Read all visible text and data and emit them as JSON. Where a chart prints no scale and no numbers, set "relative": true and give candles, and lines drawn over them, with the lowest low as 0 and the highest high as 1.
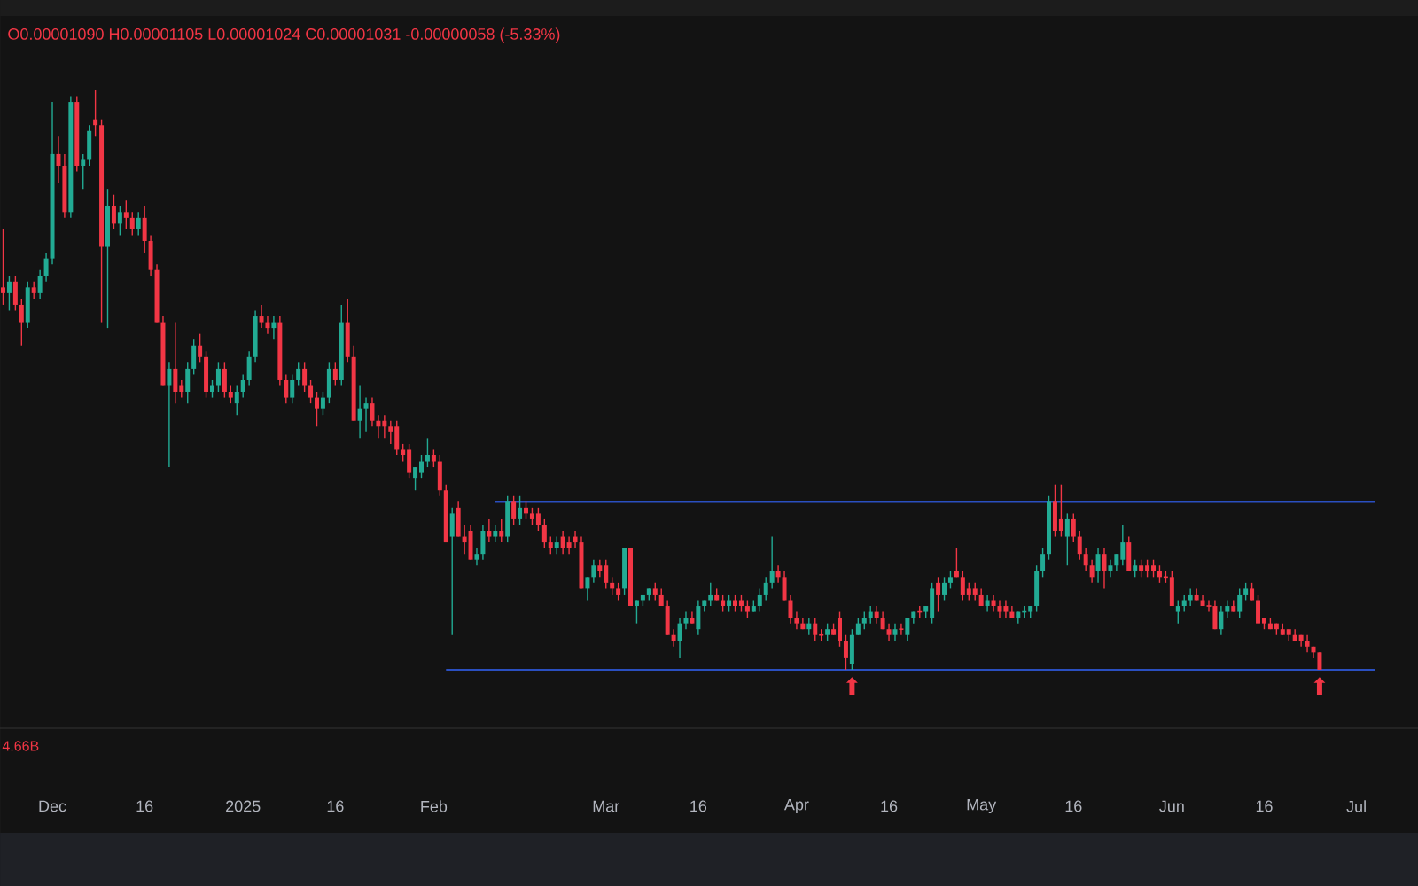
{
  "chart_data": {
    "type": "candlestick",
    "relative": true,
    "title": "O0.00001090 H0.00001105 L0.00001024 C0.00001031 -0.00000058 (-5.33%)",
    "colors": [
      "#f23645",
      "#22ab94",
      "#f23645",
      "#f23645",
      "#22ab94",
      "#f23645",
      "#22ab94",
      "#22ab94",
      "#22ab94",
      "#f23645",
      "#f23645",
      "#22ab94",
      "#f23645",
      "#22ab94",
      "#22ab94",
      "#f23645",
      "#f23645",
      "#22ab94",
      "#f23645",
      "#22ab94",
      "#f23645",
      "#f23645",
      "#22ab94",
      "#f23645",
      "#f23645",
      "#f23645",
      "#f23645",
      "#22ab94",
      "#f23645",
      "#f23645",
      "#22ab94",
      "#22ab94",
      "#f23645",
      "#f23645",
      "#22ab94",
      "#22ab94",
      "#f23645",
      "#f23645",
      "#22ab94",
      "#22ab94",
      "#22ab94",
      "#22ab94",
      "#f23645",
      "#f23645",
      "#22ab94",
      "#f23645",
      "#f23645",
      "#22ab94",
      "#22ab94",
      "#f23645",
      "#f23645",
      "#f23645",
      "#22ab94",
      "#22ab94",
      "#f23645",
      "#22ab94",
      "#f23645",
      "#f23645",
      "#22ab94",
      "#22ab94",
      "#f23645",
      "#f23645",
      "#f23645",
      "#f23645",
      "#f23645",
      "#f23645",
      "#f23645",
      "#22ab94",
      "#22ab94",
      "#22ab94",
      "#f23645",
      "#f23645",
      "#f23645",
      "#22ab94",
      "#f23645",
      "#f23645",
      "#f23645",
      "#22ab94",
      "#22ab94",
      "#f23645",
      "#22ab94",
      "#f23645",
      "#22ab94",
      "#f23645",
      "#22ab94",
      "#f23645",
      "#f23645",
      "#f23645",
      "#f23645",
      "#f23645",
      "#22ab94",
      "#f23645",
      "#f23645",
      "#f23645",
      "#f23645",
      "#22ab94",
      "#22ab94",
      "#f23645",
      "#f23645",
      "#f23645",
      "#f23645",
      "#22ab94",
      "#f23645",
      "#22ab94",
      "#22ab94",
      "#22ab94",
      "#f23645",
      "#f23645",
      "#f23645",
      "#f23645",
      "#22ab94",
      "#22ab94",
      "#f23645",
      "#22ab94",
      "#22ab94",
      "#22ab94",
      "#f23645",
      "#f23645",
      "#22ab94",
      "#f23645",
      "#f23645",
      "#f23645",
      "#22ab94",
      "#22ab94",
      "#22ab94",
      "#22ab94",
      "#f23645",
      "#f23645",
      "#f23645",
      "#f23645",
      "#f23645",
      "#22ab94",
      "#f23645",
      "#f23645",
      "#22ab94",
      "#f23645",
      "#f23645",
      "#f23645",
      "#22ab94",
      "#22ab94",
      "#22ab94",
      "#22ab94",
      "#f23645",
      "#f23645",
      "#f23645",
      "#22ab94",
      "#f23645",
      "#22ab94",
      "#22ab94",
      "#f23645",
      "#22ab94",
      "#22ab94",
      "#f23645",
      "#22ab94",
      "#22ab94",
      "#f23645",
      "#f23645",
      "#f23645",
      "#f23645",
      "#f23645",
      "#22ab94",
      "#f23645",
      "#f23645",
      "#f23645",
      "#f23645",
      "#22ab94",
      "#22ab94",
      "#22ab94",
      "#22ab94",
      "#22ab94",
      "#22ab94",
      "#f23645",
      "#f23645",
      "#22ab94",
      "#f23645",
      "#f23645",
      "#f23645",
      "#f23645",
      "#22ab94",
      "#f23645",
      "#22ab94",
      "#22ab94",
      "#22ab94",
      "#f23645",
      "#22ab94",
      "#f23645",
      "#f23645",
      "#f23645",
      "#f23645",
      "#f23645",
      "#f23645",
      "#22ab94",
      "#22ab94",
      "#22ab94",
      "#f23645",
      "#f23645",
      "#f23645",
      "#f23645",
      "#22ab94",
      "#22ab94",
      "#f23645",
      "#22ab94",
      "#22ab94",
      "#f23645",
      "#f23645",
      "#f23645",
      "#f23645",
      "#f23645",
      "#f23645",
      "#f23645",
      "#f23645",
      "#f23645",
      "#f23645",
      "#f23645",
      "#f23645"
    ],
    "xlim": [
      "2024-11-22T12:00",
      "2025-07-11"
    ],
    "xticks": [
      {
        "value": "2024-12-01",
        "label": "Dec"
      },
      {
        "value": "2024-12-16",
        "label": "16"
      },
      {
        "value": "2025-01-01",
        "label": "2025"
      },
      {
        "value": "2025-01-16",
        "label": "16"
      },
      {
        "value": "2025-02-01",
        "label": "Feb"
      },
      {
        "value": "2025-03-01",
        "label": "Mar"
      },
      {
        "value": "2025-03-16",
        "label": "16"
      },
      {
        "value": "2025-04-01",
        "label": "Apr"
      },
      {
        "value": "2025-04-16",
        "label": "16"
      },
      {
        "value": "2025-05-01",
        "label": "May"
      },
      {
        "value": "2025-05-16",
        "label": "16"
      },
      {
        "value": "2025-06-01",
        "label": "Jun"
      },
      {
        "value": "2025-06-16",
        "label": "16"
      },
      {
        "value": "2025-07-01",
        "label": "Jul"
      }
    ],
    "annotations": [
      "4.66B",
      {
        "text": "⬆",
        "x": "2025-04-10",
        "y": 0
      },
      {
        "text": "⬆",
        "x": "2025-06-25",
        "y": 0
      }
    ],
    "x": [
      "2024-11-23",
      "2024-11-24",
      "2024-11-25",
      "2024-11-26",
      "2024-11-27",
      "2024-11-28",
      "2024-11-29",
      "2024-11-30",
      "2024-12-01",
      "2024-12-02",
      "2024-12-03",
      "2024-12-04",
      "2024-12-05",
      "2024-12-06",
      "2024-12-07",
      "2024-12-08",
      "2024-12-09",
      "2024-12-10",
      "2024-12-11",
      "2024-12-12",
      "2024-12-13",
      "2024-12-14",
      "2024-12-15",
      "2024-12-16",
      "2024-12-17",
      "2024-12-18",
      "2024-12-19",
      "2024-12-20",
      "2024-12-21",
      "2024-12-22",
      "2024-12-23",
      "2024-12-24",
      "2024-12-25",
      "2024-12-26",
      "2024-12-27",
      "2024-12-28",
      "2024-12-29",
      "2024-12-30",
      "2024-12-31",
      "2025-01-01",
      "2025-01-02",
      "2025-01-03",
      "2025-01-04",
      "2025-01-05",
      "2025-01-06",
      "2025-01-07",
      "2025-01-08",
      "2025-01-09",
      "2025-01-10",
      "2025-01-11",
      "2025-01-12",
      "2025-01-13",
      "2025-01-14",
      "2025-01-15",
      "2025-01-16",
      "2025-01-17",
      "2025-01-18",
      "2025-01-19",
      "2025-01-20",
      "2025-01-21",
      "2025-01-22",
      "2025-01-23",
      "2025-01-24",
      "2025-01-25",
      "2025-01-26",
      "2025-01-27",
      "2025-01-28",
      "2025-01-29",
      "2025-01-30",
      "2025-01-31",
      "2025-02-01",
      "2025-02-02",
      "2025-02-03",
      "2025-02-04",
      "2025-02-05",
      "2025-02-06",
      "2025-02-07",
      "2025-02-08",
      "2025-02-09",
      "2025-02-10",
      "2025-02-11",
      "2025-02-12",
      "2025-02-13",
      "2025-02-14",
      "2025-02-15",
      "2025-02-16",
      "2025-02-17",
      "2025-02-18",
      "2025-02-19",
      "2025-02-20",
      "2025-02-21",
      "2025-02-22",
      "2025-02-23",
      "2025-02-24",
      "2025-02-25",
      "2025-02-26",
      "2025-02-27",
      "2025-02-28",
      "2025-03-01",
      "2025-03-02",
      "2025-03-03",
      "2025-03-04",
      "2025-03-05",
      "2025-03-06",
      "2025-03-07",
      "2025-03-08",
      "2025-03-09",
      "2025-03-10",
      "2025-03-11",
      "2025-03-12",
      "2025-03-13",
      "2025-03-14",
      "2025-03-15",
      "2025-03-16",
      "2025-03-17",
      "2025-03-18",
      "2025-03-19",
      "2025-03-20",
      "2025-03-21",
      "2025-03-22",
      "2025-03-23",
      "2025-03-24",
      "2025-03-25",
      "2025-03-26",
      "2025-03-27",
      "2025-03-28",
      "2025-03-29",
      "2025-03-30",
      "2025-03-31",
      "2025-04-01",
      "2025-04-02",
      "2025-04-03",
      "2025-04-04",
      "2025-04-05",
      "2025-04-06",
      "2025-04-07",
      "2025-04-08",
      "2025-04-09",
      "2025-04-10",
      "2025-04-11",
      "2025-04-12",
      "2025-04-13",
      "2025-04-14",
      "2025-04-15",
      "2025-04-16",
      "2025-04-17",
      "2025-04-18",
      "2025-04-19",
      "2025-04-20",
      "2025-04-21",
      "2025-04-22",
      "2025-04-23",
      "2025-04-24",
      "2025-04-25",
      "2025-04-26",
      "2025-04-27",
      "2025-04-28",
      "2025-04-29",
      "2025-04-30",
      "2025-05-01",
      "2025-05-02",
      "2025-05-03",
      "2025-05-04",
      "2025-05-05",
      "2025-05-06",
      "2025-05-07",
      "2025-05-08",
      "2025-05-09",
      "2025-05-10",
      "2025-05-11",
      "2025-05-12",
      "2025-05-13",
      "2025-05-14",
      "2025-05-15",
      "2025-05-16",
      "2025-05-17",
      "2025-05-18",
      "2025-05-19",
      "2025-05-20",
      "2025-05-21",
      "2025-05-22",
      "2025-05-23",
      "2025-05-24",
      "2025-05-25",
      "2025-05-26",
      "2025-05-27",
      "2025-05-28",
      "2025-05-29",
      "2025-05-30",
      "2025-05-31",
      "2025-06-01",
      "2025-06-02",
      "2025-06-03",
      "2025-06-04",
      "2025-06-05",
      "2025-06-06",
      "2025-06-07",
      "2025-06-08",
      "2025-06-09",
      "2025-06-10",
      "2025-06-11",
      "2025-06-12",
      "2025-06-13",
      "2025-06-14",
      "2025-06-15",
      "2025-06-16",
      "2025-06-17",
      "2025-06-18",
      "2025-06-19",
      "2025-06-20",
      "2025-06-21",
      "2025-06-22",
      "2025-06-23",
      "2025-06-24",
      "2025-06-25"
    ],
    "ohlc": [
      [
        0.66,
        0.76,
        0.63,
        0.65
      ],
      [
        0.65,
        0.68,
        0.62,
        0.67
      ],
      [
        0.67,
        0.68,
        0.62,
        0.63
      ],
      [
        0.63,
        0.64,
        0.56,
        0.6
      ],
      [
        0.6,
        0.67,
        0.59,
        0.66
      ],
      [
        0.66,
        0.67,
        0.64,
        0.65
      ],
      [
        0.65,
        0.69,
        0.64,
        0.68
      ],
      [
        0.68,
        0.72,
        0.67,
        0.71
      ],
      [
        0.71,
        0.98,
        0.7,
        0.89
      ],
      [
        0.89,
        0.92,
        0.84,
        0.87
      ],
      [
        0.87,
        0.89,
        0.78,
        0.79
      ],
      [
        0.79,
        0.99,
        0.78,
        0.98
      ],
      [
        0.98,
        0.99,
        0.86,
        0.87
      ],
      [
        0.87,
        0.89,
        0.83,
        0.88
      ],
      [
        0.88,
        0.94,
        0.87,
        0.93
      ],
      [
        0.95,
        1.0,
        0.92,
        0.94
      ],
      [
        0.94,
        0.95,
        0.6,
        0.73
      ],
      [
        0.73,
        0.83,
        0.59,
        0.8
      ],
      [
        0.8,
        0.82,
        0.76,
        0.77
      ],
      [
        0.77,
        0.8,
        0.75,
        0.79
      ],
      [
        0.79,
        0.81,
        0.76,
        0.78
      ],
      [
        0.78,
        0.79,
        0.75,
        0.76
      ],
      [
        0.76,
        0.79,
        0.75,
        0.78
      ],
      [
        0.78,
        0.8,
        0.72,
        0.74
      ],
      [
        0.74,
        0.75,
        0.68,
        0.69
      ],
      [
        0.69,
        0.7,
        0.6,
        0.6
      ],
      [
        0.6,
        0.61,
        0.49,
        0.49
      ],
      [
        0.49,
        0.53,
        0.35,
        0.52
      ],
      [
        0.52,
        0.6,
        0.46,
        0.48
      ],
      [
        0.49,
        0.5,
        0.47,
        0.48
      ],
      [
        0.48,
        0.53,
        0.46,
        0.52
      ],
      [
        0.52,
        0.57,
        0.51,
        0.56
      ],
      [
        0.56,
        0.58,
        0.53,
        0.54
      ],
      [
        0.54,
        0.55,
        0.47,
        0.48
      ],
      [
        0.48,
        0.5,
        0.47,
        0.49
      ],
      [
        0.49,
        0.53,
        0.48,
        0.52
      ],
      [
        0.52,
        0.53,
        0.47,
        0.48
      ],
      [
        0.48,
        0.49,
        0.46,
        0.47
      ],
      [
        0.46,
        0.49,
        0.44,
        0.48
      ],
      [
        0.48,
        0.51,
        0.47,
        0.5
      ],
      [
        0.5,
        0.55,
        0.49,
        0.54
      ],
      [
        0.54,
        0.62,
        0.53,
        0.61
      ],
      [
        0.61,
        0.63,
        0.59,
        0.6
      ],
      [
        0.6,
        0.61,
        0.58,
        0.59
      ],
      [
        0.59,
        0.61,
        0.57,
        0.6
      ],
      [
        0.6,
        0.61,
        0.49,
        0.5
      ],
      [
        0.5,
        0.51,
        0.46,
        0.47
      ],
      [
        0.47,
        0.51,
        0.46,
        0.5
      ],
      [
        0.5,
        0.53,
        0.49,
        0.52
      ],
      [
        0.52,
        0.53,
        0.48,
        0.49
      ],
      [
        0.49,
        0.5,
        0.46,
        0.47
      ],
      [
        0.47,
        0.48,
        0.42,
        0.45
      ],
      [
        0.45,
        0.48,
        0.44,
        0.47
      ],
      [
        0.47,
        0.53,
        0.46,
        0.52
      ],
      [
        0.52,
        0.53,
        0.49,
        0.5
      ],
      [
        0.5,
        0.63,
        0.49,
        0.6
      ],
      [
        0.6,
        0.64,
        0.53,
        0.54
      ],
      [
        0.54,
        0.56,
        0.43,
        0.43
      ],
      [
        0.43,
        0.49,
        0.4,
        0.45
      ],
      [
        0.45,
        0.47,
        0.41,
        0.46
      ],
      [
        0.46,
        0.47,
        0.42,
        0.43
      ],
      [
        0.43,
        0.44,
        0.4,
        0.42
      ],
      [
        0.43,
        0.44,
        0.4,
        0.42
      ],
      [
        0.42,
        0.43,
        0.39,
        0.41
      ],
      [
        0.42,
        0.43,
        0.37,
        0.38
      ],
      [
        0.38,
        0.39,
        0.36,
        0.37
      ],
      [
        0.38,
        0.39,
        0.33,
        0.34
      ],
      [
        0.33,
        0.35,
        0.31,
        0.35
      ],
      [
        0.34,
        0.37,
        0.33,
        0.36
      ],
      [
        0.36,
        0.4,
        0.35,
        0.37
      ],
      [
        0.37,
        0.38,
        0.35,
        0.36
      ],
      [
        0.36,
        0.37,
        0.3,
        0.31
      ],
      [
        0.31,
        0.32,
        0.22,
        0.22
      ],
      [
        0.23,
        0.28,
        0.06,
        0.27
      ],
      [
        0.28,
        0.29,
        0.23,
        0.23
      ],
      [
        0.23,
        0.25,
        0.2,
        0.22
      ],
      [
        0.24,
        0.25,
        0.19,
        0.19
      ],
      [
        0.19,
        0.21,
        0.18,
        0.2
      ],
      [
        0.2,
        0.25,
        0.19,
        0.24
      ],
      [
        0.24,
        0.26,
        0.22,
        0.23
      ],
      [
        0.23,
        0.25,
        0.22,
        0.24
      ],
      [
        0.24,
        0.26,
        0.22,
        0.23
      ],
      [
        0.23,
        0.3,
        0.22,
        0.29
      ],
      [
        0.29,
        0.3,
        0.25,
        0.26
      ],
      [
        0.26,
        0.3,
        0.25,
        0.28
      ],
      [
        0.28,
        0.29,
        0.26,
        0.27
      ],
      [
        0.27,
        0.28,
        0.25,
        0.26
      ],
      [
        0.27,
        0.28,
        0.24,
        0.25
      ],
      [
        0.25,
        0.26,
        0.21,
        0.22
      ],
      [
        0.22,
        0.23,
        0.2,
        0.21
      ],
      [
        0.21,
        0.23,
        0.2,
        0.22
      ],
      [
        0.23,
        0.24,
        0.2,
        0.21
      ],
      [
        0.22,
        0.23,
        0.2,
        0.21
      ],
      [
        0.23,
        0.24,
        0.21,
        0.22
      ],
      [
        0.22,
        0.23,
        0.14,
        0.14
      ],
      [
        0.14,
        0.16,
        0.12,
        0.16
      ],
      [
        0.16,
        0.19,
        0.15,
        0.18
      ],
      [
        0.18,
        0.19,
        0.16,
        0.17
      ],
      [
        0.18,
        0.19,
        0.14,
        0.15
      ],
      [
        0.15,
        0.16,
        0.13,
        0.14
      ],
      [
        0.14,
        0.15,
        0.12,
        0.13
      ],
      [
        0.14,
        0.21,
        0.13,
        0.21
      ],
      [
        0.21,
        0.21,
        0.11,
        0.11
      ],
      [
        0.11,
        0.12,
        0.08,
        0.12
      ],
      [
        0.12,
        0.13,
        0.11,
        0.13
      ],
      [
        0.13,
        0.14,
        0.12,
        0.14
      ],
      [
        0.14,
        0.15,
        0.12,
        0.13
      ],
      [
        0.13,
        0.14,
        0.11,
        0.11
      ],
      [
        0.11,
        0.12,
        0.06,
        0.06
      ],
      [
        0.06,
        0.07,
        0.04,
        0.05
      ],
      [
        0.05,
        0.09,
        0.02,
        0.08
      ],
      [
        0.08,
        0.1,
        0.07,
        0.09
      ],
      [
        0.09,
        0.1,
        0.08,
        0.08
      ],
      [
        0.07,
        0.12,
        0.06,
        0.11
      ],
      [
        0.11,
        0.12,
        0.1,
        0.12
      ],
      [
        0.12,
        0.15,
        0.11,
        0.13
      ],
      [
        0.13,
        0.14,
        0.12,
        0.12
      ],
      [
        0.12,
        0.13,
        0.1,
        0.11
      ],
      [
        0.11,
        0.13,
        0.1,
        0.12
      ],
      [
        0.12,
        0.13,
        0.1,
        0.11
      ],
      [
        0.12,
        0.13,
        0.1,
        0.11
      ],
      [
        0.11,
        0.12,
        0.09,
        0.1
      ],
      [
        0.1,
        0.12,
        0.1,
        0.11
      ],
      [
        0.11,
        0.14,
        0.1,
        0.13
      ],
      [
        0.13,
        0.16,
        0.12,
        0.15
      ],
      [
        0.15,
        0.23,
        0.14,
        0.17
      ],
      [
        0.17,
        0.18,
        0.15,
        0.16
      ],
      [
        0.16,
        0.17,
        0.12,
        0.12
      ],
      [
        0.12,
        0.13,
        0.08,
        0.09
      ],
      [
        0.09,
        0.1,
        0.07,
        0.08
      ],
      [
        0.08,
        0.09,
        0.07,
        0.07
      ],
      [
        0.07,
        0.09,
        0.06,
        0.08
      ],
      [
        0.08,
        0.09,
        0.05,
        0.06
      ],
      [
        0.06,
        0.07,
        0.05,
        0.06
      ],
      [
        0.06,
        0.08,
        0.05,
        0.07
      ],
      [
        0.07,
        0.08,
        0.06,
        0.06
      ],
      [
        0.09,
        0.1,
        0.04,
        0.05
      ],
      [
        0.05,
        0.06,
        0.0,
        0.02
      ],
      [
        0.01,
        0.07,
        0.0,
        0.06
      ],
      [
        0.06,
        0.09,
        0.06,
        0.08
      ],
      [
        0.08,
        0.1,
        0.07,
        0.09
      ],
      [
        0.09,
        0.11,
        0.08,
        0.1
      ],
      [
        0.1,
        0.11,
        0.08,
        0.09
      ],
      [
        0.09,
        0.1,
        0.07,
        0.07
      ],
      [
        0.07,
        0.08,
        0.05,
        0.06
      ],
      [
        0.06,
        0.08,
        0.05,
        0.07
      ],
      [
        0.07,
        0.08,
        0.06,
        0.07
      ],
      [
        0.06,
        0.09,
        0.05,
        0.09
      ],
      [
        0.09,
        0.1,
        0.08,
        0.1
      ],
      [
        0.1,
        0.11,
        0.09,
        0.1
      ],
      [
        0.1,
        0.11,
        0.09,
        0.11
      ],
      [
        0.09,
        0.15,
        0.08,
        0.14
      ],
      [
        0.15,
        0.16,
        0.1,
        0.13
      ],
      [
        0.13,
        0.16,
        0.12,
        0.15
      ],
      [
        0.15,
        0.17,
        0.14,
        0.16
      ],
      [
        0.17,
        0.21,
        0.16,
        0.16
      ],
      [
        0.16,
        0.17,
        0.12,
        0.13
      ],
      [
        0.14,
        0.15,
        0.12,
        0.13
      ],
      [
        0.14,
        0.15,
        0.12,
        0.13
      ],
      [
        0.13,
        0.14,
        0.11,
        0.11
      ],
      [
        0.11,
        0.13,
        0.1,
        0.12
      ],
      [
        0.12,
        0.13,
        0.1,
        0.11
      ],
      [
        0.11,
        0.12,
        0.09,
        0.1
      ],
      [
        0.11,
        0.12,
        0.09,
        0.1
      ],
      [
        0.1,
        0.11,
        0.09,
        0.09
      ],
      [
        0.09,
        0.1,
        0.08,
        0.1
      ],
      [
        0.1,
        0.11,
        0.09,
        0.1
      ],
      [
        0.1,
        0.11,
        0.09,
        0.11
      ],
      [
        0.11,
        0.18,
        0.1,
        0.17
      ],
      [
        0.17,
        0.21,
        0.16,
        0.2
      ],
      [
        0.2,
        0.3,
        0.19,
        0.29
      ],
      [
        0.29,
        0.32,
        0.23,
        0.24
      ],
      [
        0.26,
        0.32,
        0.23,
        0.24
      ],
      [
        0.23,
        0.27,
        0.18,
        0.26
      ],
      [
        0.26,
        0.27,
        0.22,
        0.23
      ],
      [
        0.23,
        0.24,
        0.19,
        0.2
      ],
      [
        0.2,
        0.21,
        0.17,
        0.18
      ],
      [
        0.18,
        0.19,
        0.15,
        0.16
      ],
      [
        0.17,
        0.21,
        0.15,
        0.2
      ],
      [
        0.2,
        0.21,
        0.14,
        0.17
      ],
      [
        0.17,
        0.19,
        0.16,
        0.18
      ],
      [
        0.18,
        0.2,
        0.17,
        0.2
      ],
      [
        0.19,
        0.25,
        0.18,
        0.22
      ],
      [
        0.22,
        0.23,
        0.17,
        0.17
      ],
      [
        0.17,
        0.19,
        0.16,
        0.18
      ],
      [
        0.18,
        0.19,
        0.16,
        0.17
      ],
      [
        0.18,
        0.19,
        0.16,
        0.17
      ],
      [
        0.18,
        0.19,
        0.16,
        0.17
      ],
      [
        0.17,
        0.18,
        0.15,
        0.16
      ],
      [
        0.16,
        0.17,
        0.15,
        0.16
      ],
      [
        0.16,
        0.17,
        0.11,
        0.11
      ],
      [
        0.1,
        0.12,
        0.08,
        0.11
      ],
      [
        0.11,
        0.13,
        0.1,
        0.12
      ],
      [
        0.12,
        0.14,
        0.11,
        0.13
      ],
      [
        0.13,
        0.14,
        0.12,
        0.12
      ],
      [
        0.12,
        0.13,
        0.11,
        0.11
      ],
      [
        0.11,
        0.12,
        0.1,
        0.11
      ],
      [
        0.11,
        0.12,
        0.07,
        0.07
      ],
      [
        0.07,
        0.11,
        0.06,
        0.1
      ],
      [
        0.1,
        0.12,
        0.09,
        0.11
      ],
      [
        0.11,
        0.12,
        0.1,
        0.1
      ],
      [
        0.1,
        0.14,
        0.09,
        0.13
      ],
      [
        0.13,
        0.15,
        0.12,
        0.14
      ],
      [
        0.14,
        0.15,
        0.12,
        0.12
      ],
      [
        0.12,
        0.13,
        0.08,
        0.08
      ],
      [
        0.09,
        0.09,
        0.07,
        0.08
      ],
      [
        0.08,
        0.09,
        0.07,
        0.07
      ],
      [
        0.08,
        0.08,
        0.06,
        0.07
      ],
      [
        0.07,
        0.08,
        0.06,
        0.06
      ],
      [
        0.07,
        0.07,
        0.05,
        0.06
      ],
      [
        0.06,
        0.07,
        0.05,
        0.05
      ],
      [
        0.06,
        0.06,
        0.04,
        0.05
      ],
      [
        0.05,
        0.06,
        0.03,
        0.04
      ],
      [
        0.04,
        0.04,
        0.02,
        0.03
      ],
      [
        0.03,
        0.03,
        0.0,
        0.0
      ]
    ],
    "series": [
      {
        "type": "line",
        "x": [
          "2025-02-11",
          "2025-07-04"
        ],
        "values": [
          0.29,
          0.29
        ],
        "color": "#2a4fc0"
      },
      {
        "type": "line",
        "x": [
          "2025-02-03",
          "2025-07-04"
        ],
        "values": [
          0,
          0
        ],
        "color": "#2a4fc0"
      }
    ]
  }
}
